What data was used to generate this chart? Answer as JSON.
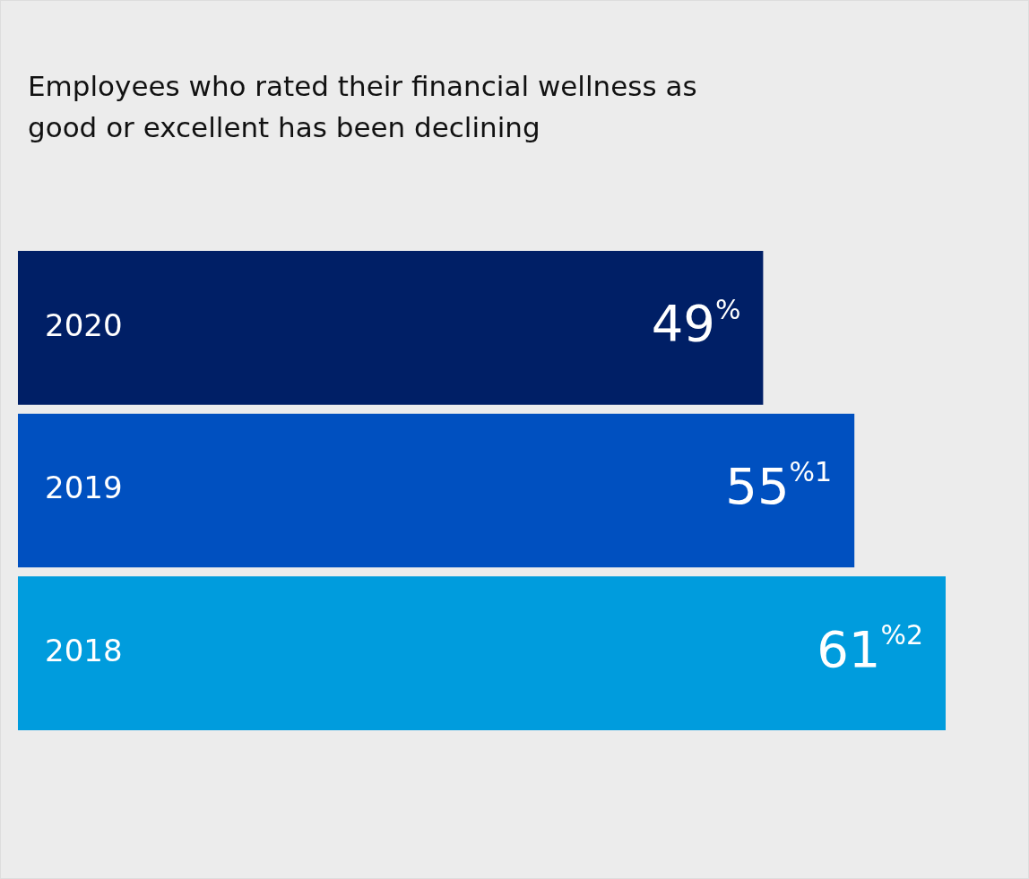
{
  "chart_data": {
    "type": "bar",
    "orientation": "horizontal",
    "title": "Employees who rated their financial wellness as good or excellent has been declining",
    "categories": [
      "2020",
      "2019",
      "2018"
    ],
    "values": [
      49,
      55,
      61
    ],
    "colors": [
      "#001f66",
      "#0050c0",
      "#009cdd"
    ],
    "value_labels": [
      "49$^{%}$",
      "55$^{%1}$",
      "61$^{%2}$"
    ],
    "legend": false
  }
}
